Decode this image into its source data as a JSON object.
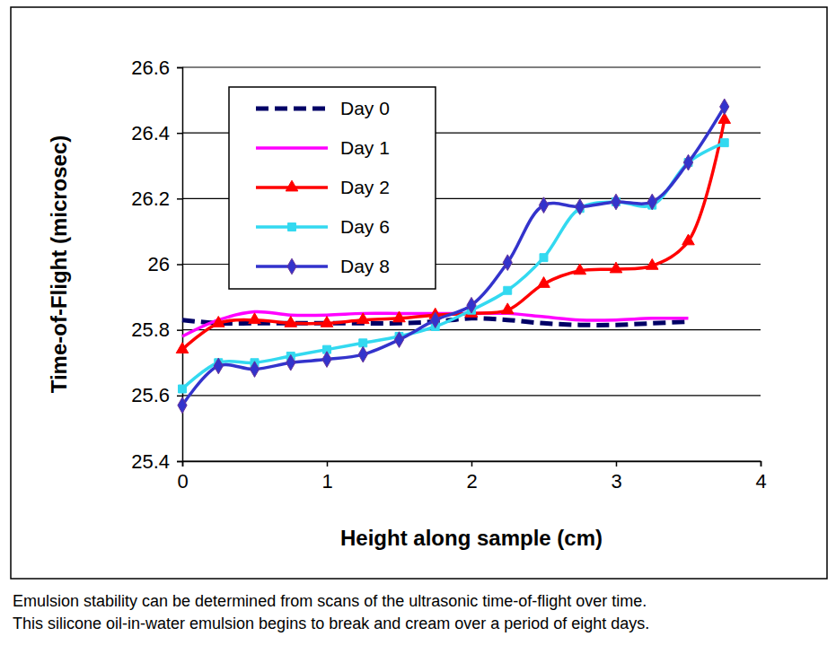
{
  "chart_data": {
    "type": "line",
    "x_label": "Height along sample (cm)",
    "y_label": "Time-of-Flight (microsec)",
    "caption": [
      "Emulsion stability can be determined from scans of the ultrasonic time-of-flight over time.",
      "This silicone oil-in-water emulsion begins to break and cream over a period of eight days."
    ],
    "x": [
      0,
      0.25,
      0.5,
      0.75,
      1,
      1.25,
      1.5,
      1.75,
      2,
      2.25,
      2.5,
      2.75,
      3,
      3.25,
      3.5,
      3.75
    ],
    "series": [
      {
        "name": "Day 0",
        "color": "#000066",
        "marker": "none",
        "line_style": "dashed",
        "values": [
          25.83,
          25.82,
          25.82,
          25.82,
          25.82,
          25.82,
          25.82,
          25.825,
          25.835,
          25.83,
          25.82,
          25.815,
          25.815,
          25.82,
          25.825,
          null
        ]
      },
      {
        "name": "Day 1",
        "color": "#ff00ff",
        "marker": "none",
        "line_style": "solid",
        "values": [
          25.78,
          25.83,
          25.855,
          25.845,
          25.845,
          25.85,
          25.85,
          25.85,
          25.85,
          25.85,
          25.84,
          25.83,
          25.83,
          25.835,
          25.835,
          null
        ]
      },
      {
        "name": "Day 2",
        "color": "#ff0000",
        "marker": "triangle",
        "line_style": "solid",
        "values": [
          25.74,
          25.82,
          25.83,
          25.82,
          25.82,
          25.83,
          25.835,
          25.845,
          25.85,
          25.86,
          25.94,
          25.98,
          25.985,
          25.995,
          26.07,
          26.44
        ]
      },
      {
        "name": "Day 6",
        "color": "#33d9f0",
        "marker": "square",
        "line_style": "solid",
        "values": [
          25.62,
          25.7,
          25.7,
          25.72,
          25.74,
          25.76,
          25.78,
          25.81,
          25.86,
          25.92,
          26.02,
          26.17,
          26.19,
          26.18,
          26.31,
          26.37
        ]
      },
      {
        "name": "Day 8",
        "color": "#3333cc",
        "marker": "diamond",
        "line_style": "solid",
        "values": [
          25.57,
          25.69,
          25.68,
          25.7,
          25.71,
          25.725,
          25.77,
          25.83,
          25.875,
          26.005,
          26.18,
          26.175,
          26.19,
          26.19,
          26.31,
          26.48
        ]
      }
    ],
    "xlim": [
      0,
      4
    ],
    "xticks": [
      0,
      1,
      2,
      3,
      4
    ],
    "ylim": [
      25.4,
      26.6
    ],
    "yticks": [
      25.4,
      25.6,
      25.8,
      26,
      26.2,
      26.4,
      26.6
    ],
    "grid": true,
    "legend": "upper left"
  }
}
